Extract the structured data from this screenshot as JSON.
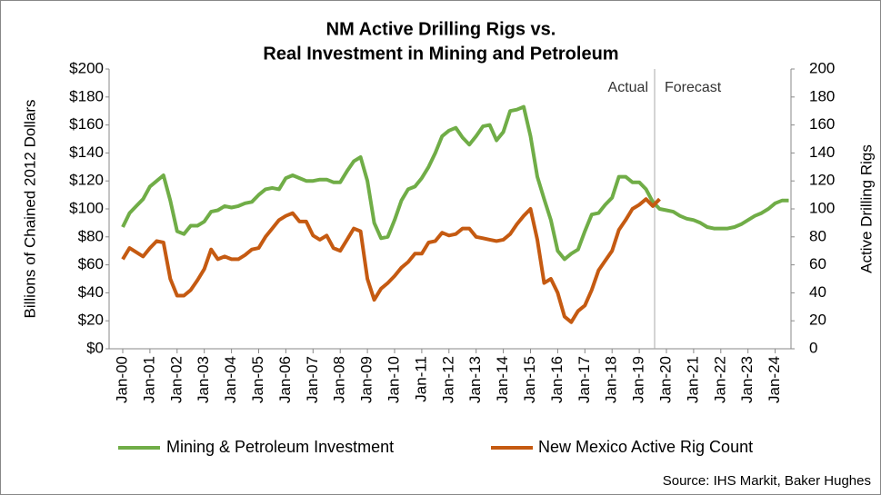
{
  "chart_data": {
    "type": "line",
    "title": [
      "NM Active Drilling Rigs vs.",
      "Real Investment in Mining and Petroleum"
    ],
    "y_label": "Billions of Chained 2012 Dollars",
    "y2_label": "Active Drilling Rigs",
    "source": "Source: IHS Markit, Baker Hughes",
    "annotations": [
      "Actual",
      "Forecast"
    ],
    "categories": [
      "Jan-00",
      null,
      null,
      null,
      "Jan-01",
      null,
      null,
      null,
      "Jan-02",
      null,
      null,
      null,
      "Jan-03",
      null,
      null,
      null,
      "Jan-04",
      null,
      null,
      null,
      "Jan-05",
      null,
      null,
      null,
      "Jan-06",
      null,
      null,
      null,
      "Jan-07",
      null,
      null,
      null,
      "Jan-08",
      null,
      null,
      null,
      "Jan-09",
      null,
      null,
      null,
      "Jan-10",
      null,
      null,
      null,
      "Jan-11",
      null,
      null,
      null,
      "Jan-12",
      null,
      null,
      null,
      "Jan-13",
      null,
      null,
      null,
      "Jan-14",
      null,
      null,
      null,
      "Jan-15",
      null,
      null,
      null,
      "Jan-16",
      null,
      null,
      null,
      "Jan-17",
      null,
      null,
      null,
      "Jan-18",
      null,
      null,
      null,
      "Jan-19",
      null,
      null,
      null,
      "Jan-20",
      null,
      null,
      null,
      "Jan-21",
      null,
      null,
      null,
      "Jan-22",
      null,
      null,
      null,
      "Jan-23",
      null,
      null,
      null,
      "Jan-24",
      null,
      null
    ],
    "series": [
      {
        "name": "Mining & Petroleum Investment",
        "color": "#70ad47",
        "axis": "y",
        "values": [
          87,
          97,
          102,
          107,
          116,
          120,
          124,
          106,
          84,
          82,
          88,
          88,
          91,
          98,
          99,
          102,
          101,
          102,
          104,
          105,
          110,
          114,
          115,
          114,
          122,
          124,
          122,
          120,
          120,
          121,
          121,
          119,
          119,
          127,
          134,
          137,
          120,
          90,
          79,
          80,
          92,
          106,
          114,
          116,
          122,
          130,
          140,
          152,
          156,
          158,
          151,
          146,
          152,
          159,
          160,
          149,
          155,
          170,
          171,
          173,
          152,
          123,
          107,
          92,
          70,
          64,
          68,
          71,
          84,
          96,
          97,
          103,
          108,
          123,
          123,
          119,
          119,
          114,
          105,
          100,
          99,
          98,
          95,
          93,
          92,
          90,
          87,
          86,
          86,
          86,
          87,
          89,
          92,
          95,
          97,
          100,
          104,
          106,
          106
        ]
      },
      {
        "name": "New Mexico Active Rig Count",
        "color": "#c55a11",
        "axis": "y2",
        "values": [
          64,
          72,
          69,
          66,
          72,
          77,
          76,
          50,
          38,
          38,
          42,
          49,
          57,
          71,
          64,
          66,
          64,
          64,
          67,
          71,
          72,
          80,
          86,
          92,
          95,
          97,
          91,
          91,
          81,
          78,
          81,
          72,
          70,
          78,
          86,
          84,
          50,
          35,
          43,
          47,
          52,
          58,
          62,
          68,
          68,
          76,
          77,
          83,
          81,
          82,
          86,
          86,
          80,
          79,
          78,
          77,
          78,
          82,
          89,
          95,
          100,
          78,
          47,
          50,
          40,
          23,
          19,
          27,
          31,
          42,
          56,
          63,
          70,
          85,
          92,
          100,
          103,
          107,
          102,
          107,
          null,
          null,
          null,
          null,
          null,
          null,
          null,
          null,
          null,
          null,
          null,
          null,
          null,
          null,
          null,
          null,
          null,
          null,
          null
        ]
      }
    ],
    "ylim": [
      0,
      200
    ],
    "yticks": [
      {
        "value": 0,
        "label": "$0"
      },
      {
        "value": 20,
        "label": "$20"
      },
      {
        "value": 40,
        "label": "$40"
      },
      {
        "value": 60,
        "label": "$60"
      },
      {
        "value": 80,
        "label": "$80"
      },
      {
        "value": 100,
        "label": "$100"
      },
      {
        "value": 120,
        "label": "$120"
      },
      {
        "value": 140,
        "label": "$140"
      },
      {
        "value": 160,
        "label": "$160"
      },
      {
        "value": 180,
        "label": "$180"
      },
      {
        "value": 200,
        "label": "$200"
      }
    ],
    "y2lim": [
      0,
      200
    ],
    "y2ticks": [
      0,
      20,
      40,
      60,
      80,
      100,
      120,
      140,
      160,
      180,
      200
    ],
    "legend": "bottom"
  }
}
